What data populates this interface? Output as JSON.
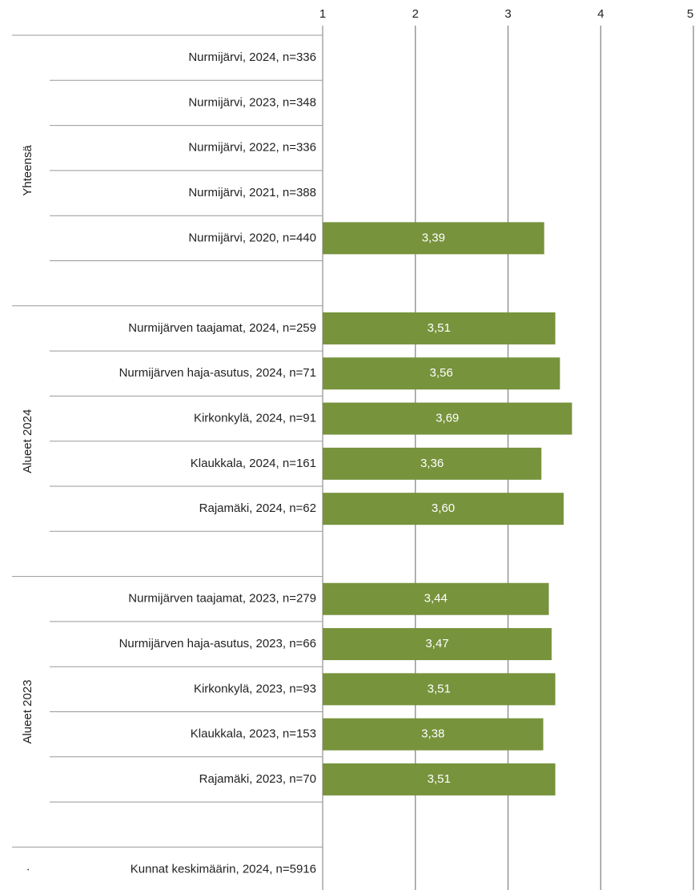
{
  "chart_data": {
    "type": "bar",
    "orientation": "horizontal",
    "categories": [
      "Nurmijärvi, 2024, n=336",
      "Nurmijärvi, 2023, n=348",
      "Nurmijärvi, 2022, n=336",
      "Nurmijärvi, 2021, n=388",
      "Nurmijärvi, 2020, n=440",
      null,
      "Nurmijärven taajamat, 2024, n=259",
      "Nurmijärven haja-asutus, 2024, n=71",
      "Kirkonkylä, 2024, n=91",
      "Klaukkala, 2024, n=161",
      "Rajamäki, 2024, n=62",
      null,
      "Nurmijärven taajamat, 2023, n=279",
      "Nurmijärven haja-asutus, 2023, n=66",
      "Kirkonkylä, 2023, n=93",
      "Klaukkala, 2023, n=153",
      "Rajamäki, 2023, n=70",
      null,
      "Kunnat keskimäärin, 2024, n=5916"
    ],
    "values": [
      null,
      null,
      null,
      null,
      3.39,
      null,
      3.51,
      3.56,
      3.69,
      3.36,
      3.6,
      null,
      3.44,
      3.47,
      3.51,
      3.38,
      3.51,
      null,
      null
    ],
    "value_labels": [
      null,
      null,
      null,
      null,
      "3,39",
      null,
      "3,51",
      "3,56",
      "3,69",
      "3,36",
      "3,60",
      null,
      "3,44",
      "3,47",
      "3,51",
      "3,38",
      "3,51",
      null,
      null
    ],
    "groups": [
      {
        "name": "Yhteensä",
        "size": 6
      },
      {
        "name": "Alueet 2024",
        "size": 6
      },
      {
        "name": "Alueet 2023",
        "size": 6
      },
      {
        "name": "·",
        "size": 1
      }
    ],
    "color": "#77933c",
    "xlim": [
      1,
      5
    ],
    "xticks": [
      1,
      2,
      3,
      4,
      5
    ],
    "grid": true
  }
}
